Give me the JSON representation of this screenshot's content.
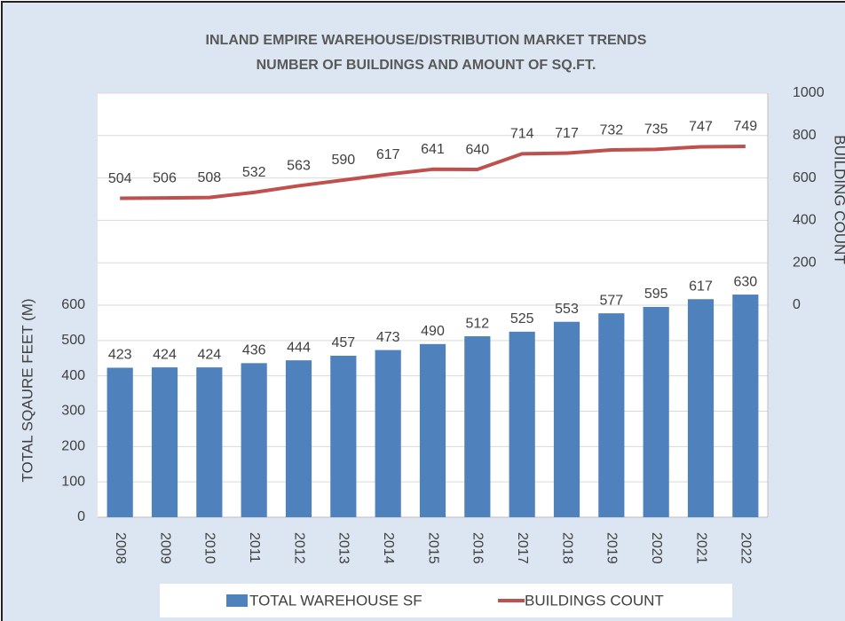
{
  "chart_data": {
    "type": "bar_line",
    "title": "INLAND EMPIRE WAREHOUSE/DISTRIBUTION MARKET TRENDS",
    "subtitle": "NUMBER OF BUILDINGS AND AMOUNT OF SQ.FT.",
    "y_label": "TOTAL SQAURE FEET (M)",
    "y2_label": "BUILDING COUNT",
    "categories": [
      "2008",
      "2009",
      "2010",
      "2011",
      "2012",
      "2013",
      "2014",
      "2015",
      "2016",
      "2017",
      "2018",
      "2019",
      "2020",
      "2021",
      "2022"
    ],
    "series": [
      {
        "name": "TOTAL WAREHOUSE SF",
        "color": "#4f81bd",
        "type": "bar",
        "values": [
          423,
          424,
          424,
          436,
          444,
          457,
          473,
          490,
          512,
          525,
          553,
          577,
          595,
          617,
          630
        ]
      },
      {
        "name": "BUILDINGS COUNT",
        "color": "#c0504d",
        "type": "line",
        "axis": "y2",
        "values": [
          504,
          506,
          508,
          532,
          563,
          590,
          617,
          641,
          640,
          714,
          717,
          732,
          735,
          747,
          749
        ]
      }
    ],
    "ylim": [
      0,
      1200
    ],
    "yticks": [
      0,
      100,
      200,
      300,
      400,
      500,
      600
    ],
    "y2lim": [
      -1000,
      1000
    ],
    "y2ticks": [
      0,
      200,
      400,
      600,
      800,
      1000
    ],
    "grid": true,
    "legend": "bottom"
  }
}
